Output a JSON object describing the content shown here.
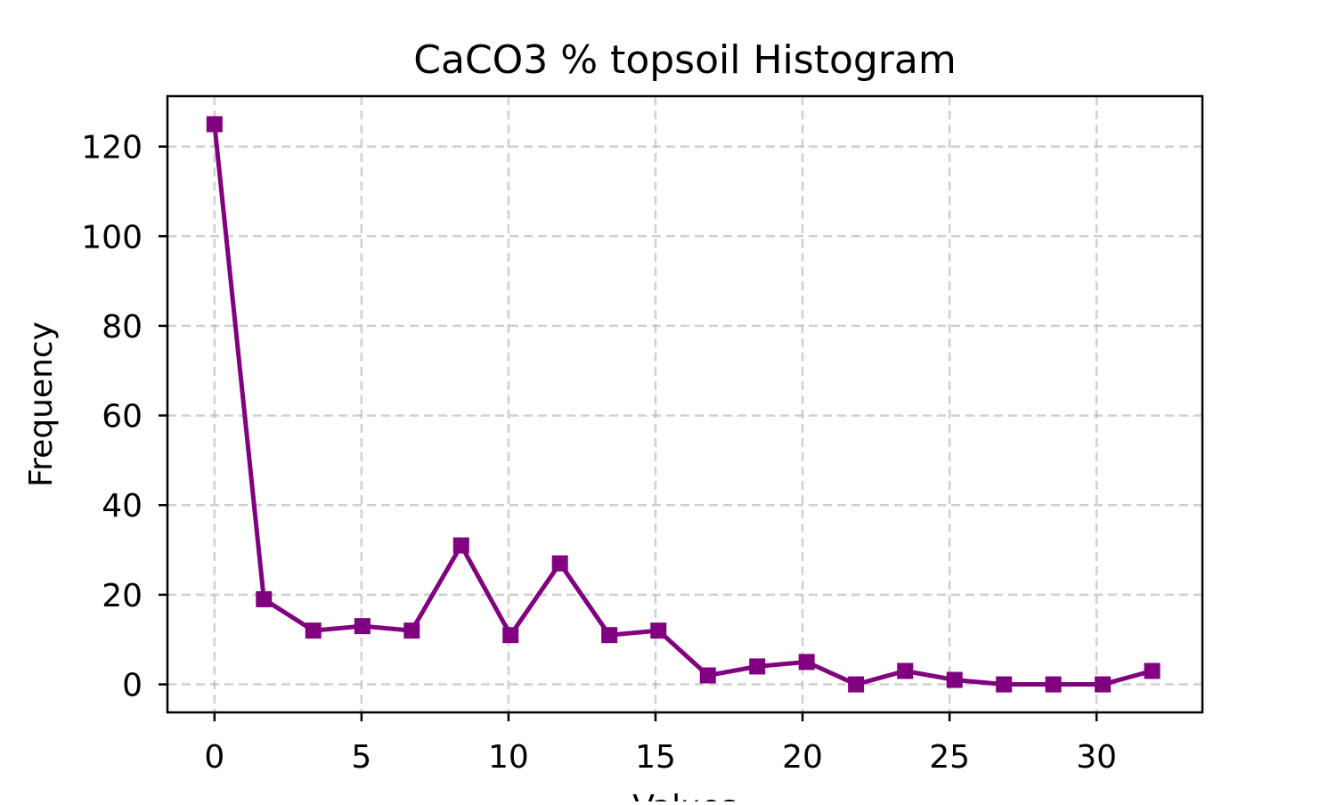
{
  "chart_data": {
    "type": "line",
    "title": "CaCO3 % topsoil Histogram",
    "xlabel": "Values",
    "ylabel": "Frequency",
    "xlim": [
      -1.6,
      33.6
    ],
    "ylim": [
      -6.25,
      131.25
    ],
    "xticks": [
      0,
      5,
      10,
      15,
      20,
      25,
      30
    ],
    "yticks": [
      0,
      20,
      40,
      60,
      80,
      100,
      120
    ],
    "grid": true,
    "marker": "square",
    "series": [
      {
        "name": "CaCO3 % topsoil",
        "color": "#800080",
        "x": [
          0.0,
          1.68,
          3.36,
          5.03,
          6.71,
          8.39,
          10.07,
          11.75,
          13.43,
          15.1,
          16.78,
          18.46,
          20.14,
          21.82,
          23.49,
          25.17,
          26.85,
          28.53,
          30.21,
          31.89
        ],
        "y": [
          125,
          19,
          12,
          13,
          12,
          31,
          11,
          27,
          11,
          12,
          2,
          4,
          5,
          0,
          3,
          1,
          0,
          0,
          0,
          3
        ]
      }
    ]
  }
}
